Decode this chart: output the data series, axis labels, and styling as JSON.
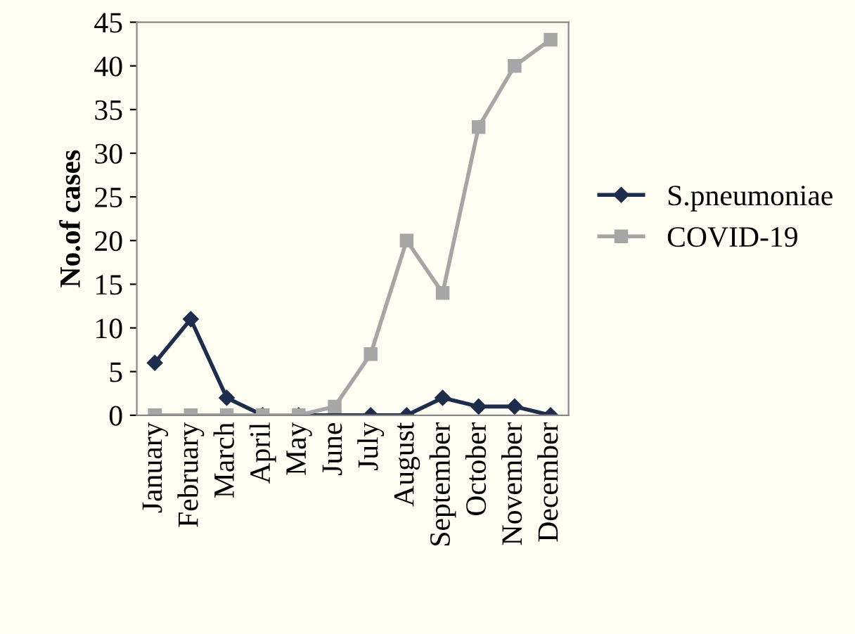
{
  "chart_data": {
    "type": "line",
    "ylabel": "No.of cases",
    "categories": [
      "January",
      "February",
      "March",
      "April",
      "May",
      "June",
      "July",
      "August",
      "September",
      "October",
      "November",
      "December"
    ],
    "series": [
      {
        "name": "S.pneumoniae",
        "color": "#1f2d4d",
        "marker": "diamond",
        "values": [
          6,
          11,
          2,
          0,
          0,
          0,
          0,
          0,
          2,
          1,
          1,
          0
        ]
      },
      {
        "name": "COVID-19",
        "color": "#a6a6a6",
        "marker": "square",
        "values": [
          0,
          0,
          0,
          0,
          0,
          1,
          7,
          20,
          14,
          33,
          40,
          43
        ]
      }
    ],
    "ylim": [
      0,
      45
    ],
    "yticks": [
      0,
      5,
      10,
      15,
      20,
      25,
      30,
      35,
      40,
      45
    ],
    "grid": false,
    "legend": "right",
    "line_style": "solid"
  }
}
